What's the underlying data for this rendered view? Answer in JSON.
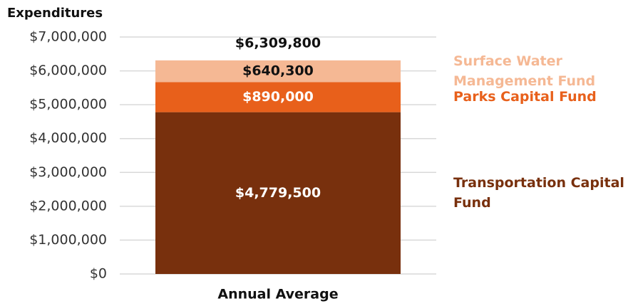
{
  "chart_data": {
    "type": "stacked_bar",
    "title": "Expenditures",
    "categories": [
      "Annual Average"
    ],
    "series": [
      {
        "name": "Transportation Capital Fund",
        "color": "#78300d",
        "values": [
          4779500
        ],
        "value_labels": [
          "$4,779,500"
        ]
      },
      {
        "name": "Parks Capital Fund",
        "color": "#e8601b",
        "values": [
          890000
        ],
        "value_labels": [
          "$890,000"
        ]
      },
      {
        "name": "Surface Water Management Fund",
        "color": "#f5b894",
        "values": [
          640300
        ],
        "value_labels": [
          "$640,300"
        ]
      }
    ],
    "total": {
      "value": 6309800,
      "label": "$6,309,800"
    },
    "ylim": [
      0,
      7000000
    ],
    "yticks": [
      {
        "value": 0,
        "label": "$0"
      },
      {
        "value": 1000000,
        "label": "$1,000,000"
      },
      {
        "value": 2000000,
        "label": "$2,000,000"
      },
      {
        "value": 3000000,
        "label": "$3,000,000"
      },
      {
        "value": 4000000,
        "label": "$4,000,000"
      },
      {
        "value": 5000000,
        "label": "$5,000,000"
      },
      {
        "value": 6000000,
        "label": "$6,000,000"
      },
      {
        "value": 7000000,
        "label": "$7,000,000"
      }
    ],
    "grid": true,
    "legend": "right"
  }
}
